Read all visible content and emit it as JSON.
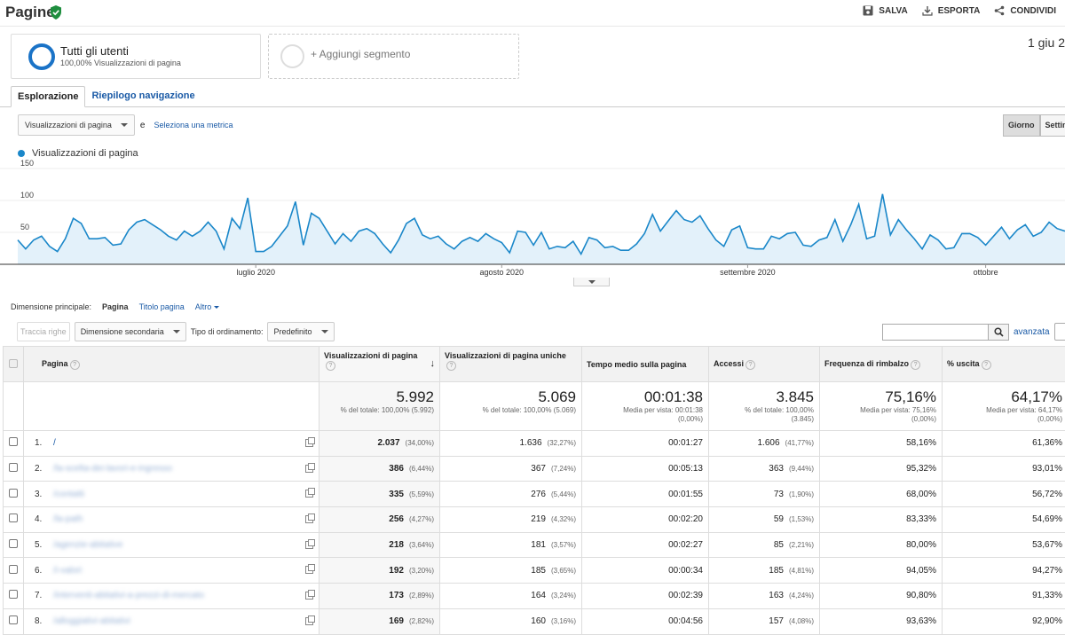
{
  "header": {
    "title": "Pagine",
    "actions": [
      {
        "label": "SALVA",
        "icon": "save-icon"
      },
      {
        "label": "ESPORTA",
        "icon": "download-icon"
      },
      {
        "label": "CONDIVIDI",
        "icon": "share-icon"
      }
    ]
  },
  "segments": {
    "active_title": "Tutti gli utenti",
    "active_sub": "100,00% Visualizzazioni di pagina",
    "add_label": "+ Aggiungi segmento"
  },
  "date_range": "1 giu 2",
  "tabs": [
    "Esplorazione",
    "Riepilogo navigazione"
  ],
  "metric_bar": {
    "metric_select": "Visualizzazioni di pagina",
    "conjunction": "e",
    "select_metric_link": "Seleziona una metrica",
    "granularity": [
      "Giorno",
      "Settim"
    ]
  },
  "chart_data": {
    "type": "area",
    "series": [
      {
        "name": "Visualizzazioni di pagina",
        "color": "#1a87c9"
      }
    ],
    "y_ticks": [
      "150",
      "100",
      "50"
    ],
    "ylim": [
      0,
      150
    ],
    "x_labels": [
      "luglio 2020",
      "agosto 2020",
      "settembre 2020",
      "ottobre"
    ],
    "start": "2020-06-01",
    "values": [
      38,
      24,
      38,
      44,
      28,
      20,
      40,
      72,
      64,
      40,
      40,
      42,
      30,
      32,
      54,
      66,
      70,
      62,
      54,
      44,
      38,
      52,
      44,
      52,
      66,
      52,
      24,
      72,
      56,
      104,
      20,
      20,
      28,
      44,
      60,
      98,
      30,
      80,
      72,
      52,
      32,
      48,
      36,
      52,
      56,
      48,
      32,
      18,
      38,
      64,
      72,
      46,
      40,
      44,
      32,
      24,
      36,
      42,
      36,
      48,
      40,
      34,
      18,
      52,
      50,
      30,
      50,
      24,
      28,
      26,
      36,
      16,
      42,
      38,
      26,
      28,
      22,
      22,
      32,
      48,
      78,
      52,
      68,
      84,
      70,
      66,
      76,
      56,
      38,
      28,
      54,
      60,
      26,
      24,
      24,
      44,
      40,
      48,
      50,
      30,
      28,
      38,
      42,
      70,
      36,
      62,
      94,
      40,
      44,
      110,
      46,
      70,
      54,
      40,
      24,
      46,
      38,
      24,
      26,
      48,
      48,
      42,
      30,
      44,
      58,
      40,
      54,
      62,
      44,
      50,
      66,
      56,
      52
    ]
  },
  "dimension": {
    "label": "Dimensione principale:",
    "options": [
      "Pagina",
      "Titolo pagina",
      "Altro"
    ]
  },
  "toolbar": {
    "plot_rows": "Traccia righe",
    "secondary_dim": "Dimensione secondaria",
    "sort_type_label": "Tipo di ordinamento:",
    "sort_type_value": "Predefinito",
    "advanced": "avanzata",
    "search_placeholder": ""
  },
  "table": {
    "columns": [
      "Pagina",
      "Visualizzazioni di pagina",
      "Visualizzazioni di pagina uniche",
      "Tempo medio sulla pagina",
      "Accessi",
      "Frequenza di rimbalzo",
      "% uscita"
    ],
    "totals": [
      {
        "value": "5.992",
        "sub1": "% del totale: 100,00% (5.992)",
        "sub2": "",
        "sub3": ""
      },
      {
        "value": "5.069",
        "sub1": "% del totale: 100,00% (5.069)",
        "sub2": "",
        "sub3": ""
      },
      {
        "value": "00:01:38",
        "sub1": "Media per vista: 00:01:38",
        "sub2": "(0,00%)",
        "sub3": ""
      },
      {
        "value": "3.845",
        "sub1": "% del totale: 100,00%",
        "sub2": "(3.845)",
        "sub3": ""
      },
      {
        "value": "75,16%",
        "sub1": "Media per vista: 75,16%",
        "sub2": "(0,00%)",
        "sub3": ""
      },
      {
        "value": "64,17%",
        "sub1": "Media per vista: 64,17%",
        "sub2": "(0,00%)",
        "sub3": ""
      }
    ],
    "rows": [
      {
        "n": "1.",
        "page": "/",
        "blur": false,
        "pv": "2.037",
        "pv_pct": "(34,00%)",
        "upv": "1.636",
        "upv_pct": "(32,27%)",
        "time": "00:01:27",
        "acc": "1.606",
        "acc_pct": "(41,77%)",
        "bounce": "58,16%",
        "exit": "61,36%"
      },
      {
        "n": "2.",
        "page": "/la-scelta-dei-lavori-e-ingresso",
        "blur": true,
        "pv": "386",
        "pv_pct": "(6,44%)",
        "upv": "367",
        "upv_pct": "(7,24%)",
        "time": "00:05:13",
        "acc": "363",
        "acc_pct": "(9,44%)",
        "bounce": "95,32%",
        "exit": "93,01%"
      },
      {
        "n": "3.",
        "page": "/contatti",
        "blur": true,
        "pv": "335",
        "pv_pct": "(5,59%)",
        "upv": "276",
        "upv_pct": "(5,44%)",
        "time": "00:01:55",
        "acc": "73",
        "acc_pct": "(1,90%)",
        "bounce": "68,00%",
        "exit": "56,72%"
      },
      {
        "n": "4.",
        "page": "/la-path",
        "blur": true,
        "pv": "256",
        "pv_pct": "(4,27%)",
        "upv": "219",
        "upv_pct": "(4,32%)",
        "time": "00:02:20",
        "acc": "59",
        "acc_pct": "(1,53%)",
        "bounce": "83,33%",
        "exit": "54,69%"
      },
      {
        "n": "5.",
        "page": "/agenzie-abitative",
        "blur": true,
        "pv": "218",
        "pv_pct": "(3,64%)",
        "upv": "181",
        "upv_pct": "(3,57%)",
        "time": "00:02:27",
        "acc": "85",
        "acc_pct": "(2,21%)",
        "bounce": "80,00%",
        "exit": "53,67%"
      },
      {
        "n": "6.",
        "page": "/i-valori",
        "blur": true,
        "pv": "192",
        "pv_pct": "(3,20%)",
        "upv": "185",
        "upv_pct": "(3,65%)",
        "time": "00:00:34",
        "acc": "185",
        "acc_pct": "(4,81%)",
        "bounce": "94,05%",
        "exit": "94,27%"
      },
      {
        "n": "7.",
        "page": "/interventi-abitativi-a-prezzi-di-mercato",
        "blur": true,
        "pv": "173",
        "pv_pct": "(2,89%)",
        "upv": "164",
        "upv_pct": "(3,24%)",
        "time": "00:02:39",
        "acc": "163",
        "acc_pct": "(4,24%)",
        "bounce": "90,80%",
        "exit": "91,33%"
      },
      {
        "n": "8.",
        "page": "/alloggiativi-abitativi",
        "blur": true,
        "pv": "169",
        "pv_pct": "(2,82%)",
        "upv": "160",
        "upv_pct": "(3,16%)",
        "time": "00:04:56",
        "acc": "157",
        "acc_pct": "(4,08%)",
        "bounce": "93,63%",
        "exit": "92,90%"
      }
    ]
  }
}
